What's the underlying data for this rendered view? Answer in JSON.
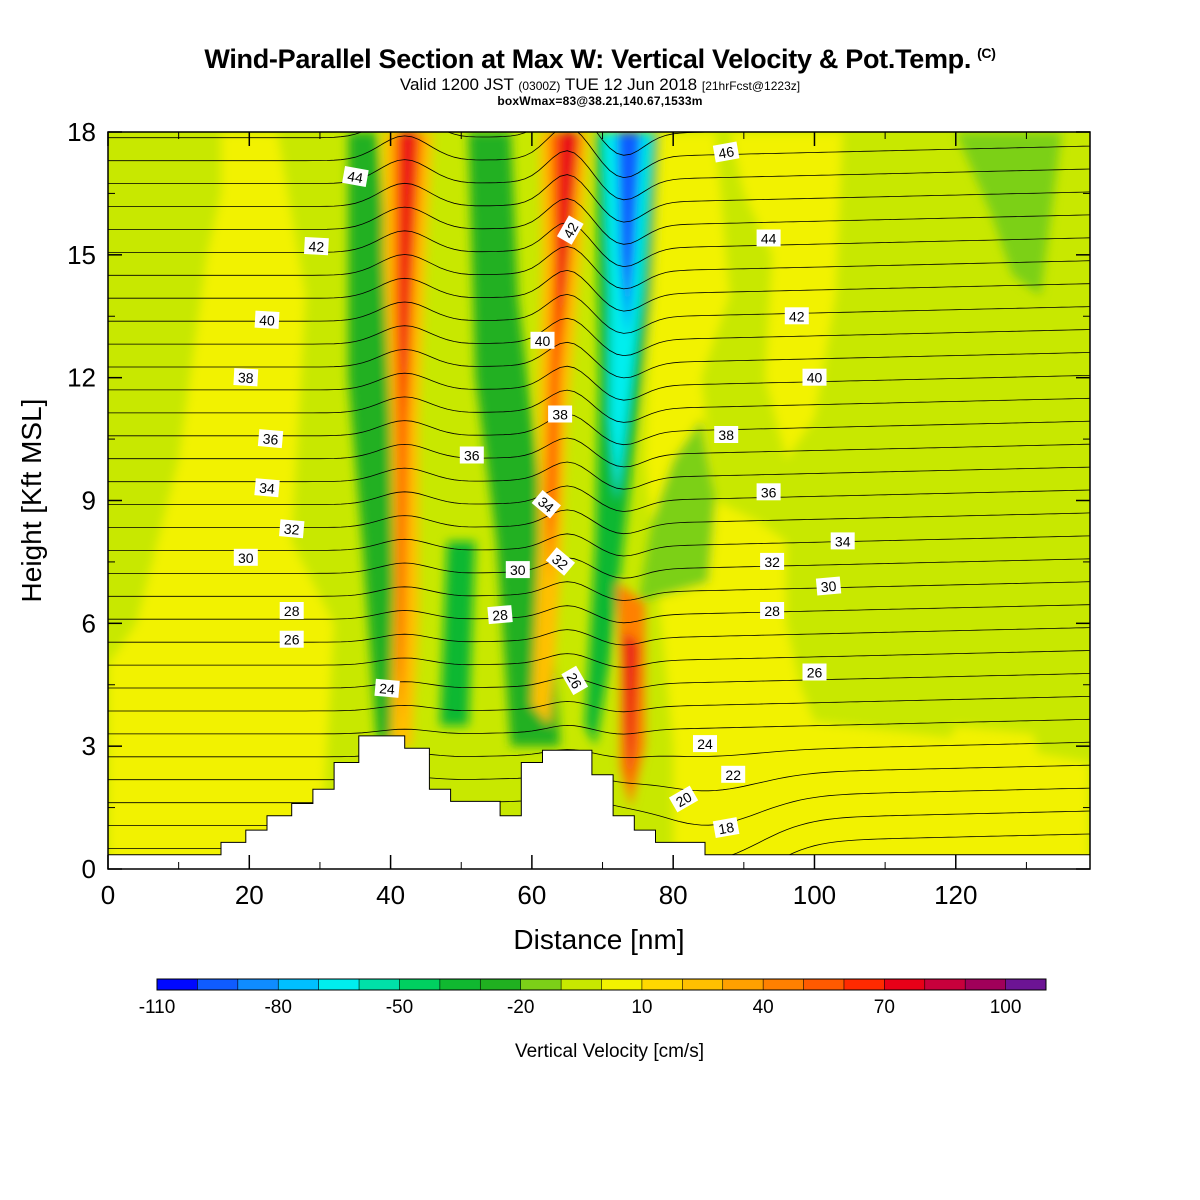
{
  "header": {
    "title": "Wind-Parallel Section at Max W: Vertical Velocity & Pot.Temp.",
    "copyright": "(C)",
    "valid_prefix": "Valid 1200 JST",
    "valid_utc": "(0300Z)",
    "valid_date": "TUE 12 Jun 2018",
    "forecast": "[21hrFcst@1223z]",
    "boxwmax": "boxWmax=83@38.21,140.67,1533m"
  },
  "chart_data": {
    "type": "contour",
    "xlabel": "Distance [nm]",
    "ylabel": "Height [Kft MSL]",
    "xlim": [
      0,
      139
    ],
    "ylim": [
      0,
      18
    ],
    "x_ticks": [
      0,
      20,
      40,
      60,
      80,
      100,
      120
    ],
    "y_ticks": [
      0,
      3,
      6,
      9,
      12,
      15,
      18
    ],
    "colorbar": {
      "label": "Vertical Velocity [cm/s]",
      "tick_labels": [
        "-110",
        "-80",
        "-50",
        "-20",
        "10",
        "40",
        "70",
        "100"
      ],
      "levels": [
        -110,
        -100,
        -90,
        -80,
        -70,
        -60,
        -50,
        -40,
        -30,
        -20,
        -10,
        0,
        10,
        20,
        30,
        40,
        50,
        60,
        70,
        80,
        90,
        100,
        110
      ],
      "colors": [
        "#0008ff",
        "#0f5cff",
        "#0f8cff",
        "#00bfff",
        "#00eeee",
        "#00e0a8",
        "#00d060",
        "#10b830",
        "#20b020",
        "#7cd018",
        "#c8e800",
        "#f2f200",
        "#ffd800",
        "#ffc000",
        "#ffa000",
        "#ff8000",
        "#ff5a00",
        "#ff2a00",
        "#e80018",
        "#c8003c",
        "#a0005a",
        "#6c1494"
      ]
    },
    "terrain": [
      [
        0,
        0.35
      ],
      [
        16,
        0.35
      ],
      [
        16,
        0.65
      ],
      [
        19.5,
        0.65
      ],
      [
        19.5,
        0.95
      ],
      [
        22.5,
        0.95
      ],
      [
        22.5,
        1.3
      ],
      [
        26,
        1.3
      ],
      [
        26,
        1.6
      ],
      [
        29,
        1.6
      ],
      [
        29,
        1.95
      ],
      [
        32,
        1.95
      ],
      [
        32,
        2.6
      ],
      [
        35.5,
        2.6
      ],
      [
        35.5,
        3.25
      ],
      [
        42,
        3.25
      ],
      [
        42,
        2.95
      ],
      [
        45.5,
        2.95
      ],
      [
        45.5,
        1.95
      ],
      [
        48.5,
        1.95
      ],
      [
        48.5,
        1.65
      ],
      [
        55.5,
        1.65
      ],
      [
        55.5,
        1.3
      ],
      [
        58.5,
        1.3
      ],
      [
        58.5,
        2.6
      ],
      [
        61.5,
        2.6
      ],
      [
        61.5,
        2.9
      ],
      [
        68.5,
        2.9
      ],
      [
        68.5,
        2.3
      ],
      [
        71.5,
        2.3
      ],
      [
        71.5,
        1.3
      ],
      [
        74.5,
        1.3
      ],
      [
        74.5,
        0.95
      ],
      [
        77.5,
        0.95
      ],
      [
        77.5,
        0.65
      ],
      [
        84.5,
        0.65
      ],
      [
        84.5,
        0.35
      ],
      [
        139,
        0.35
      ]
    ],
    "theta_labels": [
      {
        "text": "44",
        "x": 35,
        "y": 16.9,
        "rot": 10
      },
      {
        "text": "42",
        "x": 29.5,
        "y": 15.2,
        "rot": 3
      },
      {
        "text": "40",
        "x": 22.5,
        "y": 13.4,
        "rot": 3
      },
      {
        "text": "38",
        "x": 19.5,
        "y": 12.0,
        "rot": 3
      },
      {
        "text": "36",
        "x": 23,
        "y": 10.5,
        "rot": 5
      },
      {
        "text": "34",
        "x": 22.5,
        "y": 9.3,
        "rot": 5
      },
      {
        "text": "32",
        "x": 26,
        "y": 8.3,
        "rot": 5
      },
      {
        "text": "30",
        "x": 19.5,
        "y": 7.6,
        "rot": 0
      },
      {
        "text": "28",
        "x": 26,
        "y": 6.3,
        "rot": 0
      },
      {
        "text": "26",
        "x": 26,
        "y": 5.6,
        "rot": 0
      },
      {
        "text": "24",
        "x": 39.5,
        "y": 4.4,
        "rot": 5
      },
      {
        "text": "36",
        "x": 51.5,
        "y": 10.1,
        "rot": 0
      },
      {
        "text": "30",
        "x": 58,
        "y": 7.3,
        "rot": 0
      },
      {
        "text": "28",
        "x": 55.5,
        "y": 6.2,
        "rot": -5
      },
      {
        "text": "40",
        "x": 61.5,
        "y": 12.9,
        "rot": 0
      },
      {
        "text": "38",
        "x": 64,
        "y": 11.1,
        "rot": 0
      },
      {
        "text": "34",
        "x": 62,
        "y": 8.9,
        "rot": 40
      },
      {
        "text": "32",
        "x": 64,
        "y": 7.5,
        "rot": 40
      },
      {
        "text": "42",
        "x": 65.5,
        "y": 15.6,
        "rot": -60
      },
      {
        "text": "26",
        "x": 66,
        "y": 4.6,
        "rot": 60
      },
      {
        "text": "46",
        "x": 87.5,
        "y": 17.5,
        "rot": -10
      },
      {
        "text": "44",
        "x": 93.5,
        "y": 15.4,
        "rot": 0
      },
      {
        "text": "42",
        "x": 97.5,
        "y": 13.5,
        "rot": 0
      },
      {
        "text": "40",
        "x": 100,
        "y": 12.0,
        "rot": 0
      },
      {
        "text": "38",
        "x": 87.5,
        "y": 10.6,
        "rot": 0
      },
      {
        "text": "36",
        "x": 93.5,
        "y": 9.2,
        "rot": 0
      },
      {
        "text": "34",
        "x": 104,
        "y": 8.0,
        "rot": 0
      },
      {
        "text": "32",
        "x": 94,
        "y": 7.5,
        "rot": 0
      },
      {
        "text": "30",
        "x": 102,
        "y": 6.9,
        "rot": -5
      },
      {
        "text": "28",
        "x": 94,
        "y": 6.3,
        "rot": 0
      },
      {
        "text": "26",
        "x": 100,
        "y": 4.8,
        "rot": 0
      },
      {
        "text": "24",
        "x": 84.5,
        "y": 3.05,
        "rot": 0
      },
      {
        "text": "22",
        "x": 88.5,
        "y": 2.3,
        "rot": 0
      },
      {
        "text": "20",
        "x": 81.5,
        "y": 1.7,
        "rot": -30
      },
      {
        "text": "18",
        "x": 87.5,
        "y": 1.0,
        "rot": -10
      }
    ]
  }
}
